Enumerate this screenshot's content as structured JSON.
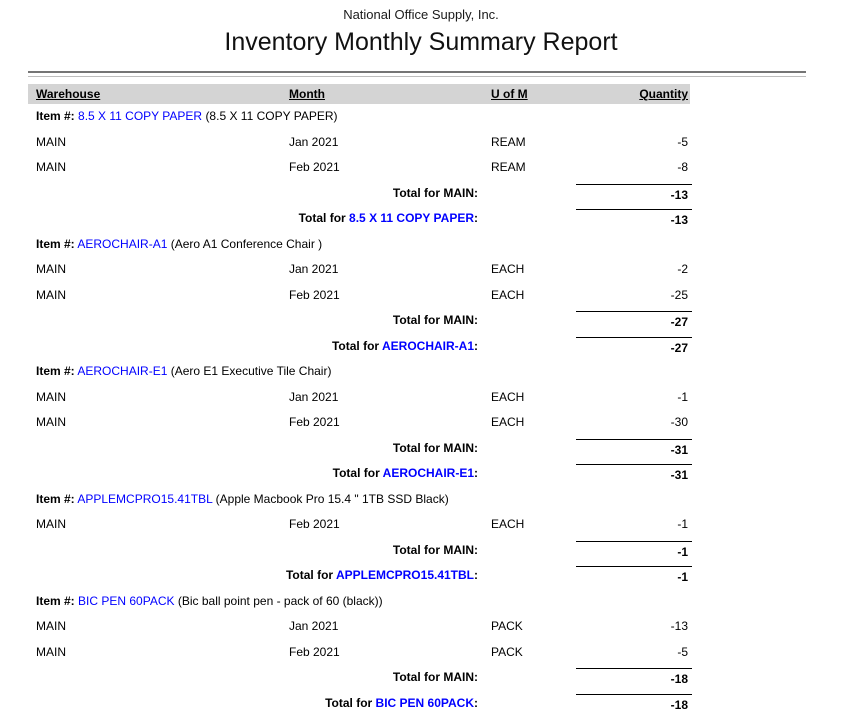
{
  "report": {
    "company": "National Office Supply, Inc.",
    "title": "Inventory Monthly Summary Report",
    "columns": [
      "Warehouse",
      "Month",
      "U of M",
      "Quantity"
    ],
    "items": [
      {
        "code": "8.5 X 11 COPY PAPER",
        "description": "(8.5 X 11 COPY PAPER)",
        "rows": [
          {
            "warehouse": "MAIN",
            "month": "Jan 2021",
            "uom": "REAM",
            "qty": "-5"
          },
          {
            "warehouse": "MAIN",
            "month": "Feb 2021",
            "uom": "REAM",
            "qty": "-8"
          }
        ],
        "warehouse_total_label": "Total for MAIN:",
        "warehouse_total": "-13",
        "item_total": "-13"
      },
      {
        "code": "AEROCHAIR-A1",
        "description": "(Aero A1 Conference Chair )",
        "rows": [
          {
            "warehouse": "MAIN",
            "month": "Jan 2021",
            "uom": "EACH",
            "qty": "-2"
          },
          {
            "warehouse": "MAIN",
            "month": "Feb 2021",
            "uom": "EACH",
            "qty": "-25"
          }
        ],
        "warehouse_total_label": "Total for MAIN:",
        "warehouse_total": "-27",
        "item_total": "-27"
      },
      {
        "code": "AEROCHAIR-E1",
        "description": "(Aero E1 Executive Tile Chair)",
        "rows": [
          {
            "warehouse": "MAIN",
            "month": "Jan 2021",
            "uom": "EACH",
            "qty": "-1"
          },
          {
            "warehouse": "MAIN",
            "month": "Feb 2021",
            "uom": "EACH",
            "qty": "-30"
          }
        ],
        "warehouse_total_label": "Total for MAIN:",
        "warehouse_total": "-31",
        "item_total": "-31"
      },
      {
        "code": "APPLEMCPRO15.41TBL",
        "description": "(Apple Macbook Pro 15.4 \" 1TB SSD Black)",
        "rows": [
          {
            "warehouse": "MAIN",
            "month": "Feb 2021",
            "uom": "EACH",
            "qty": "-1"
          }
        ],
        "warehouse_total_label": "Total for MAIN:",
        "warehouse_total": "-1",
        "item_total": "-1"
      },
      {
        "code": "BIC PEN 60PACK",
        "description": "(Bic ball point pen - pack of 60 (black))",
        "rows": [
          {
            "warehouse": "MAIN",
            "month": "Jan 2021",
            "uom": "PACK",
            "qty": "-13"
          },
          {
            "warehouse": "MAIN",
            "month": "Feb 2021",
            "uom": "PACK",
            "qty": "-5"
          }
        ],
        "warehouse_total_label": "Total for MAIN:",
        "warehouse_total": "-18",
        "item_total": "-18"
      }
    ]
  },
  "labels": {
    "item_prefix": "Item #:",
    "total_for_prefix": "Total for ",
    "colon": ":"
  },
  "colors": {
    "link_blue": "#0000ff",
    "header_band": "#d4d4d4",
    "rule_dark": "#757575",
    "rule_light": "#bdbdbd"
  }
}
